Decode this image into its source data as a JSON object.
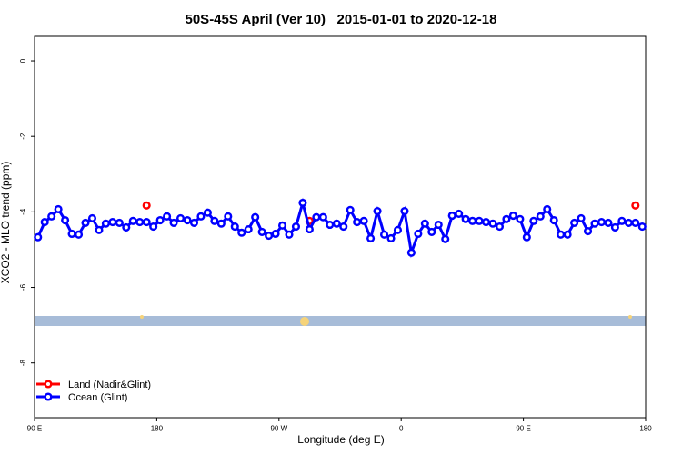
{
  "chart_data": {
    "type": "line",
    "title": "50S-45S April (Ver 10)   2015-01-01 to 2020-12-18",
    "x_label": "Longitude (deg E)",
    "y_label": "XCO2 - MLO trend (ppm)",
    "xlim": [
      90,
      540
    ],
    "ylim": [
      -9.45,
      0.65
    ],
    "xticks": [
      {
        "value": 90,
        "label": "90 E"
      },
      {
        "value": 180,
        "label": "180"
      },
      {
        "value": 270,
        "label": "90 W"
      },
      {
        "value": 360,
        "label": "0"
      },
      {
        "value": 450,
        "label": "90 E"
      },
      {
        "value": 540,
        "label": "180"
      }
    ],
    "yticks": [
      0,
      -2,
      -4,
      -6,
      -8
    ],
    "legend": "bottom-left",
    "series": [
      {
        "name": "Land (Nadir&Glint)",
        "color": "#ff0000",
        "x": [
          172.5,
          292.5,
          532.5
        ],
        "values": [
          -3.83,
          -4.24,
          -3.83
        ]
      },
      {
        "name": "Ocean (Glint)",
        "color": "#0000ff",
        "x": [
          92.5,
          97.5,
          102.5,
          107.5,
          112.5,
          117.5,
          122.5,
          127.5,
          132.5,
          137.5,
          142.5,
          147.5,
          152.5,
          157.5,
          162.5,
          167.5,
          172.5,
          177.5,
          182.5,
          187.5,
          192.5,
          197.5,
          202.5,
          207.5,
          212.5,
          217.5,
          222.5,
          227.5,
          232.5,
          237.5,
          242.5,
          247.5,
          252.5,
          257.5,
          262.5,
          267.5,
          272.5,
          277.5,
          282.5,
          287.5,
          292.5,
          297.5,
          302.5,
          307.5,
          312.5,
          317.5,
          322.5,
          327.5,
          332.5,
          337.5,
          342.5,
          347.5,
          352.5,
          357.5,
          362.5,
          367.5,
          372.5,
          377.5,
          382.5,
          387.5,
          392.5,
          397.5,
          402.5,
          407.5,
          412.5,
          417.5,
          422.5,
          427.5,
          432.5,
          437.5,
          442.5,
          447.5,
          452.5,
          457.5,
          462.5,
          467.5,
          472.5,
          477.5,
          482.5,
          487.5,
          492.5,
          497.5,
          502.5,
          507.5,
          512.5,
          517.5,
          522.5,
          527.5,
          532.5,
          537.5
        ],
        "values": [
          -4.67,
          -4.27,
          -4.12,
          -3.93,
          -4.22,
          -4.58,
          -4.6,
          -4.29,
          -4.17,
          -4.48,
          -4.31,
          -4.27,
          -4.29,
          -4.41,
          -4.24,
          -4.27,
          -4.27,
          -4.39,
          -4.22,
          -4.12,
          -4.29,
          -4.17,
          -4.22,
          -4.29,
          -4.12,
          -4.02,
          -4.24,
          -4.31,
          -4.12,
          -4.39,
          -4.55,
          -4.46,
          -4.14,
          -4.53,
          -4.63,
          -4.58,
          -4.36,
          -4.6,
          -4.39,
          -3.76,
          -4.46,
          -4.14,
          -4.14,
          -4.34,
          -4.31,
          -4.39,
          -3.95,
          -4.27,
          -4.24,
          -4.7,
          -3.98,
          -4.6,
          -4.7,
          -4.48,
          -3.98,
          -5.08,
          -4.58,
          -4.31,
          -4.53,
          -4.34,
          -4.72,
          -4.1,
          -4.05,
          -4.19,
          -4.24,
          -4.24,
          -4.27,
          -4.31,
          -4.39,
          -4.19,
          -4.1,
          -4.19,
          -4.67,
          -4.24,
          -4.12,
          -3.93,
          -4.22,
          -4.6,
          -4.6,
          -4.29,
          -4.17,
          -4.51,
          -4.31,
          -4.27,
          -4.29,
          -4.41,
          -4.24,
          -4.29,
          -4.29,
          -4.39
        ]
      }
    ]
  }
}
